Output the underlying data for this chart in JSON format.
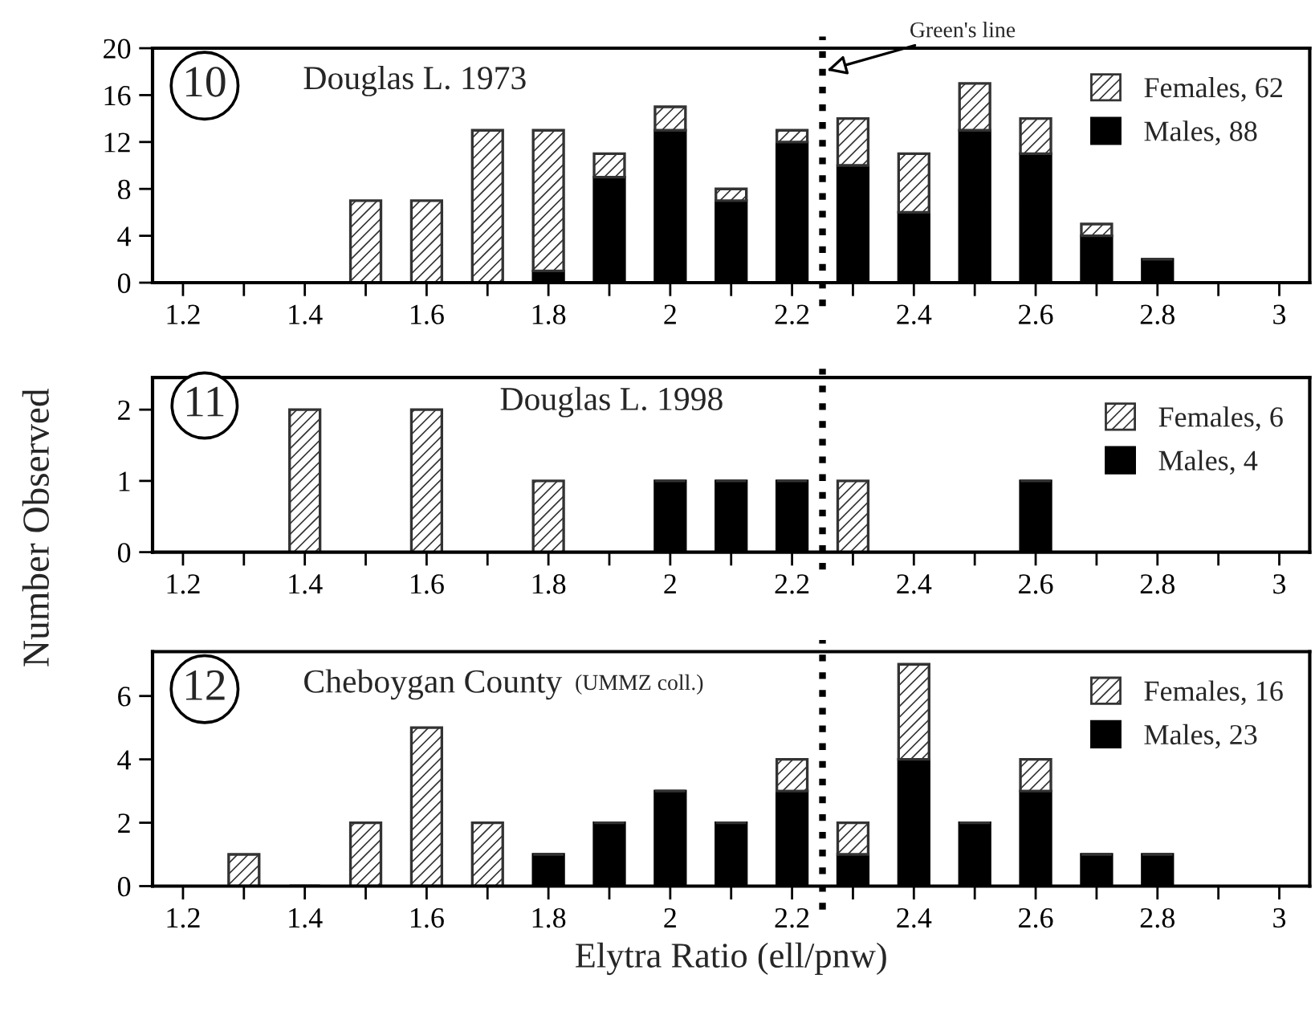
{
  "chart_data": [
    {
      "type": "bar",
      "stacked": true,
      "title": "Douglas L. 1973",
      "x": [
        1.3,
        1.4,
        1.5,
        1.6,
        1.7,
        1.8,
        1.9,
        2.0,
        2.1,
        2.2,
        2.3,
        2.4,
        2.5,
        2.6,
        2.7,
        2.8
      ],
      "series": [
        {
          "name": "Males, 88",
          "color": "#000000",
          "values": [
            0,
            0,
            0,
            0,
            0,
            1,
            9,
            13,
            7,
            12,
            10,
            6,
            13,
            11,
            4,
            2
          ]
        },
        {
          "name": "Females, 62",
          "color": "#333333",
          "values": [
            0,
            0,
            7,
            7,
            13,
            12,
            2,
            2,
            1,
            1,
            4,
            5,
            4,
            3,
            1,
            0
          ]
        }
      ],
      "xlim": [
        1.15,
        3.05
      ],
      "xticks": [
        1.2,
        {
          "value": 1.3,
          "label": null
        },
        1.4,
        {
          "value": 1.5,
          "label": null
        },
        1.6,
        {
          "value": 1.7,
          "label": null
        },
        1.8,
        {
          "value": 1.9,
          "label": null
        },
        2,
        {
          "value": 2.1,
          "label": null
        },
        2.2,
        {
          "value": 2.3,
          "label": null
        },
        2.4,
        {
          "value": 2.5,
          "label": null
        },
        2.6,
        {
          "value": 2.7,
          "label": null
        },
        2.8,
        {
          "value": 2.9,
          "label": null
        },
        3
      ],
      "ylim": [
        0,
        20
      ],
      "yticks": [
        0,
        4,
        8,
        12,
        16,
        20
      ],
      "grid": false,
      "legend": "top right",
      "ref_lines": [
        {
          "axis": "x",
          "value": 2.25,
          "color": "#000000",
          "line_style": "dotted"
        }
      ],
      "annotations": [
        "10",
        {
          "text": "Green's line",
          "x": 2.25,
          "y": 18
        }
      ]
    },
    {
      "type": "bar",
      "stacked": true,
      "title": "Douglas L. 1998",
      "ylabel": "Number Observed",
      "x": [
        1.3,
        1.4,
        1.5,
        1.6,
        1.7,
        1.8,
        1.9,
        2.0,
        2.1,
        2.2,
        2.3,
        2.4,
        2.5,
        2.6,
        2.7,
        2.8
      ],
      "series": [
        {
          "name": "Males, 4",
          "color": "#000000",
          "values": [
            0,
            0,
            0,
            0,
            0,
            0,
            0,
            1,
            1,
            1,
            0,
            0,
            0,
            1,
            0,
            0
          ]
        },
        {
          "name": "Females, 6",
          "color": "#333333",
          "values": [
            0,
            2,
            0,
            2,
            0,
            1,
            0,
            0,
            0,
            0,
            1,
            0,
            0,
            0,
            0,
            0
          ]
        }
      ],
      "xlim": [
        1.15,
        3.05
      ],
      "xticks": [
        1.2,
        {
          "value": 1.3,
          "label": null
        },
        1.4,
        {
          "value": 1.5,
          "label": null
        },
        1.6,
        {
          "value": 1.7,
          "label": null
        },
        1.8,
        {
          "value": 1.9,
          "label": null
        },
        2,
        {
          "value": 2.1,
          "label": null
        },
        2.2,
        {
          "value": 2.3,
          "label": null
        },
        2.4,
        {
          "value": 2.5,
          "label": null
        },
        2.6,
        {
          "value": 2.7,
          "label": null
        },
        2.8,
        {
          "value": 2.9,
          "label": null
        },
        3
      ],
      "ylim": [
        0,
        2.45
      ],
      "yticks": [
        0,
        1,
        2
      ],
      "grid": false,
      "legend": "top right",
      "ref_lines": [
        {
          "axis": "x",
          "value": 2.25,
          "color": "#000000",
          "line_style": "dotted"
        }
      ],
      "annotations": [
        "11"
      ]
    },
    {
      "type": "bar",
      "stacked": true,
      "title": "Cheboygan County",
      "subtitle": "(UMMZ coll.)",
      "xlabel": "Elytra Ratio (ell/pnw)",
      "x": [
        1.3,
        1.4,
        1.5,
        1.6,
        1.7,
        1.8,
        1.9,
        2.0,
        2.1,
        2.2,
        2.3,
        2.4,
        2.5,
        2.6,
        2.7,
        2.8
      ],
      "series": [
        {
          "name": "Males, 23",
          "color": "#000000",
          "values": [
            0,
            0,
            0,
            0,
            0,
            1,
            2,
            3,
            2,
            3,
            1,
            4,
            2,
            3,
            1,
            1
          ]
        },
        {
          "name": "Females, 16",
          "color": "#333333",
          "values": [
            1,
            0,
            2,
            5,
            2,
            0,
            0,
            0,
            0,
            1,
            1,
            3,
            0,
            1,
            0,
            0
          ]
        }
      ],
      "xlim": [
        1.15,
        3.05
      ],
      "xticks": [
        1.2,
        {
          "value": 1.3,
          "label": null
        },
        1.4,
        {
          "value": 1.5,
          "label": null
        },
        1.6,
        {
          "value": 1.7,
          "label": null
        },
        1.8,
        {
          "value": 1.9,
          "label": null
        },
        2,
        {
          "value": 2.1,
          "label": null
        },
        2.2,
        {
          "value": 2.3,
          "label": null
        },
        2.4,
        {
          "value": 2.5,
          "label": null
        },
        2.6,
        {
          "value": 2.7,
          "label": null
        },
        2.8,
        {
          "value": 2.9,
          "label": null
        },
        3
      ],
      "ylim": [
        0,
        7.4
      ],
      "yticks": [
        0,
        2,
        4,
        6
      ],
      "grid": false,
      "legend": "top right",
      "ref_lines": [
        {
          "axis": "x",
          "value": 2.25,
          "color": "#000000",
          "line_style": "dotted"
        }
      ],
      "annotations": [
        "12"
      ]
    }
  ]
}
